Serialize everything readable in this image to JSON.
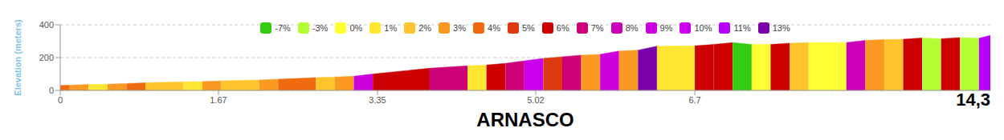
{
  "chart_data": {
    "type": "area",
    "title": "ARNASCO",
    "annotation": "14,3",
    "y_label": "Elevation (meters)",
    "x": [
      0,
      0.1,
      0.3,
      0.5,
      0.7,
      0.9,
      1.3,
      1.5,
      1.7,
      2.1,
      2.3,
      2.7,
      2.9,
      3.1,
      3.3,
      3.9,
      4.3,
      4.5,
      4.7,
      4.9,
      5.1,
      5.3,
      5.5,
      5.7,
      5.9,
      6.1,
      6.3,
      6.7,
      6.9,
      7.1,
      7.3,
      7.5,
      7.7,
      7.9,
      8.3,
      8.5,
      8.7,
      8.9,
      9.1,
      9.3,
      9.5,
      9.7,
      9.82
    ],
    "values": [
      30,
      32,
      36,
      38,
      42,
      46,
      52,
      54,
      58,
      64,
      68,
      78,
      82,
      86,
      100,
      135,
      150,
      155,
      165,
      180,
      195,
      205,
      215,
      220,
      240,
      245,
      270,
      272,
      280,
      292,
      280,
      280,
      288,
      292,
      292,
      305,
      310,
      312,
      320,
      315,
      322,
      318,
      335
    ],
    "segment_grades": [
      "4%",
      "3%",
      "1%",
      "3%",
      "4%",
      "2%",
      "1%",
      "3%",
      "2%",
      "3%",
      "4%",
      "2%",
      "3%",
      "9%",
      "6%",
      "7%",
      "1%",
      "6%",
      "7%",
      "10%",
      "5%",
      "7%",
      "3%",
      "9%",
      "3%",
      "13%",
      "1%",
      "6%",
      "6%",
      "-7%",
      "0%",
      "6%",
      "2%",
      "0%",
      "8%",
      "3%",
      "2%",
      "6%",
      "-3%",
      "6%",
      "-3%",
      "11%"
    ],
    "grades": [
      {
        "name": "-7%",
        "color": "#33cc11"
      },
      {
        "name": "-3%",
        "color": "#b3ff33"
      },
      {
        "name": "0%",
        "color": "#ffff33"
      },
      {
        "name": "1%",
        "color": "#ffe633"
      },
      {
        "name": "2%",
        "color": "#ffc42e"
      },
      {
        "name": "3%",
        "color": "#fb9a22"
      },
      {
        "name": "4%",
        "color": "#f06a10"
      },
      {
        "name": "5%",
        "color": "#dd3a10"
      },
      {
        "name": "6%",
        "color": "#cc0000"
      },
      {
        "name": "7%",
        "color": "#cc0077"
      },
      {
        "name": "8%",
        "color": "#cc00b8"
      },
      {
        "name": "9%",
        "color": "#cc00dd"
      },
      {
        "name": "10%",
        "color": "#cc00ee"
      },
      {
        "name": "11%",
        "color": "#b800ff"
      },
      {
        "name": "13%",
        "color": "#7a00a8"
      }
    ],
    "xlim": [
      0,
      9.82
    ],
    "xticks": [
      0,
      1.67,
      3.35,
      5.02,
      6.7
    ],
    "ylim": [
      0,
      400
    ],
    "yticks": [
      0,
      200,
      400
    ],
    "grid": true,
    "legend": "top"
  }
}
